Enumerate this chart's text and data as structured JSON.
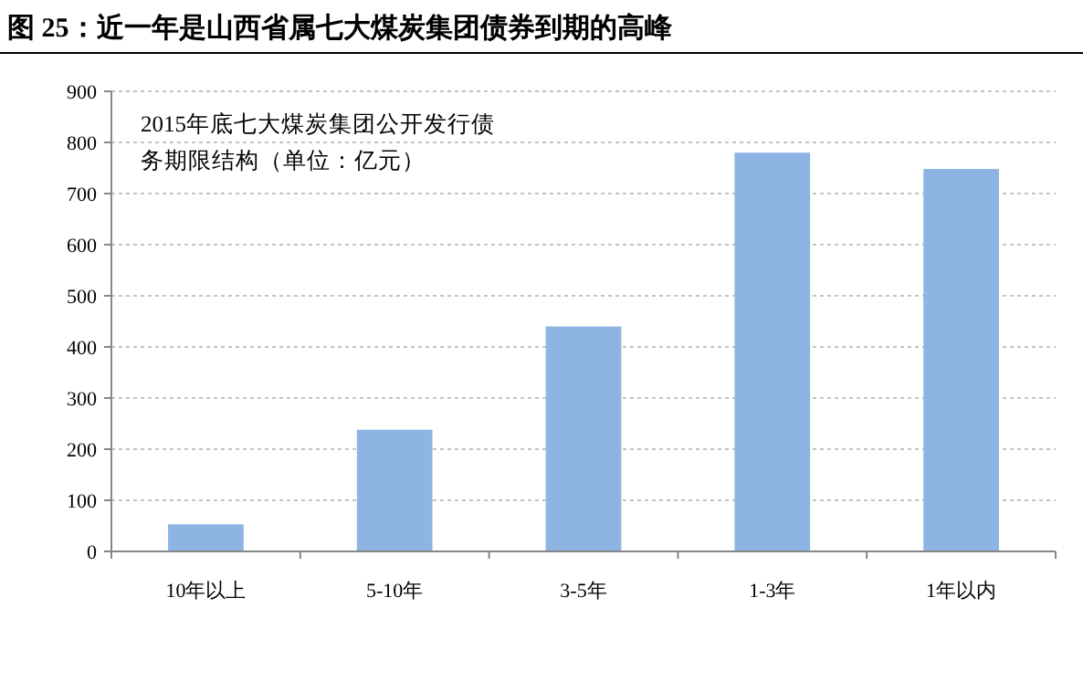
{
  "chart_data": {
    "type": "bar",
    "title": "图 25：近一年是山西省属七大煤炭集团债券到期的高峰",
    "annotations": [
      "2015年底七大煤炭集团公开发行债务期限结构（单位：亿元）"
    ],
    "categories": [
      "10年以上",
      "5-10年",
      "3-5年",
      "1-3年",
      "1年以内"
    ],
    "values": [
      53,
      238,
      440,
      780,
      748
    ],
    "color": "#8db4e2",
    "ylim": [
      0,
      900
    ],
    "yticks": [
      0,
      100,
      200,
      300,
      400,
      500,
      600,
      700,
      800,
      900
    ],
    "grid": "y"
  }
}
